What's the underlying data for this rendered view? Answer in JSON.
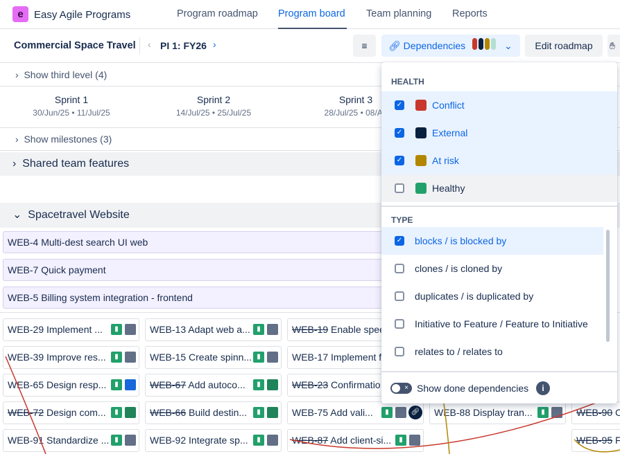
{
  "app": {
    "name": "Easy Agile Programs",
    "logo": "e"
  },
  "nav": [
    "Program roadmap",
    "Program board",
    "Team planning",
    "Reports"
  ],
  "toolbar": {
    "program": "Commercial Space Travel",
    "pi": "PI 1: FY26",
    "dependencies": "Dependencies",
    "edit": "Edit roadmap"
  },
  "dep_colors": [
    "#c9372c",
    "#09203f",
    "#b38600",
    "#b3dfd0"
  ],
  "rows": {
    "third": "Show third level (4)",
    "milestones": "Show milestones (3)"
  },
  "sprints": [
    {
      "name": "Sprint 1",
      "dates": "30/Jun/25 • 11/Jul/25"
    },
    {
      "name": "Sprint 2",
      "dates": "14/Jul/25 • 25/Jul/25"
    },
    {
      "name": "Sprint 3",
      "dates": "28/Jul/25 • 08/Au"
    }
  ],
  "groups": [
    "Shared team features",
    "Spacetravel Website"
  ],
  "features": [
    "WEB-4 Multi-dest search UI web",
    "WEB-7 Quick payment",
    "WEB-5 Billing system integration - frontend"
  ],
  "cards": [
    [
      {
        "k": "WEB-29",
        "t": "Implement ...",
        "done": false,
        "c": "#626f86"
      },
      {
        "k": "WEB-13",
        "t": "Adapt web a...",
        "done": false,
        "c": "#626f86"
      },
      {
        "k": "WEB-19",
        "t": "Enable spee",
        "done": true
      }
    ],
    [
      {
        "k": "WEB-39",
        "t": "Improve res...",
        "done": false,
        "c": "#626f86"
      },
      {
        "k": "WEB-15",
        "t": "Create spinn...",
        "done": false,
        "c": "#626f86"
      },
      {
        "k": "WEB-17",
        "t": "Implement f",
        "done": false
      }
    ],
    [
      {
        "k": "WEB-65",
        "t": "Design resp...",
        "done": false,
        "c": "#1868db"
      },
      {
        "k": "WEB-67",
        "t": "Add autoco...",
        "done": true,
        "c": "#1f845a"
      },
      {
        "k": "WEB-23",
        "t": "Confirmatio",
        "done": true
      }
    ],
    [
      {
        "k": "WEB-72",
        "t": "Design com...",
        "done": true,
        "c": "#1f845a"
      },
      {
        "k": "WEB-66",
        "t": "Build destin...",
        "done": true,
        "c": "#1f845a"
      },
      {
        "k": "WEB-75",
        "t": "Add vali...",
        "done": false,
        "c": "#626f86",
        "link": true
      },
      {
        "k": "WEB-88",
        "t": "Display tran...",
        "done": false,
        "c": "#626f86"
      },
      {
        "k": "WEB-90",
        "t": "C",
        "done": true
      }
    ],
    [
      {
        "k": "WEB-91",
        "t": "Standardize ...",
        "done": false,
        "c": "#626f86"
      },
      {
        "k": "WEB-92",
        "t": "Integrate sp...",
        "done": false,
        "c": "#626f86"
      },
      {
        "k": "WEB-87",
        "t": "Add client-si...",
        "done": true,
        "c": "#626f86"
      },
      null,
      {
        "k": "WEB-95",
        "t": "F",
        "done": true
      }
    ]
  ],
  "dropdown": {
    "health_title": "HEALTH",
    "health": [
      {
        "label": "Conflict",
        "color": "#c9372c",
        "checked": true
      },
      {
        "label": "External",
        "color": "#09203f",
        "checked": true
      },
      {
        "label": "At risk",
        "color": "#b38600",
        "checked": true
      },
      {
        "label": "Healthy",
        "color": "#22a06b",
        "checked": false
      }
    ],
    "type_title": "TYPE",
    "types": [
      {
        "label": "blocks / is blocked by",
        "checked": true
      },
      {
        "label": "clones / is cloned by",
        "checked": false
      },
      {
        "label": "duplicates / is duplicated by",
        "checked": false
      },
      {
        "label": "Initiative to Feature / Feature to Initiative",
        "checked": false
      },
      {
        "label": "relates to / relates to",
        "checked": false
      }
    ],
    "show_done": "Show done dependencies",
    "show_done_on": false
  }
}
